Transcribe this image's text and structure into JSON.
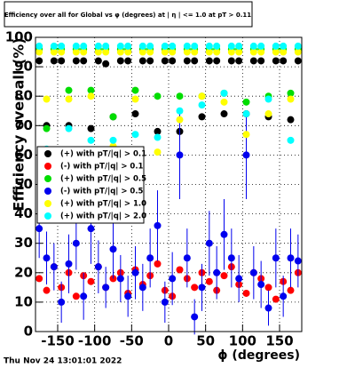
{
  "chart_data": {
    "type": "scatter",
    "title": "Efficiency over all for Global vs φ (degrees) at | η | <= 1.0 at pT > 0.11",
    "x_label": "ϕ (degrees)",
    "y_label": "Efficiency over all (%)",
    "timestamp": "Thu Nov 24 13:01:01 2022",
    "x": [
      -175,
      -165,
      -155,
      -145,
      -135,
      -125,
      -115,
      -105,
      -95,
      -85,
      -75,
      -65,
      -55,
      -45,
      -35,
      -25,
      -15,
      -5,
      5,
      15,
      25,
      35,
      45,
      55,
      65,
      75,
      85,
      95,
      105,
      115,
      125,
      135,
      145,
      155,
      165,
      175
    ],
    "series": [
      {
        "name": "(+) with pT/|q| > 0.1",
        "color": "#000000",
        "values": [
          92,
          70,
          92,
          92,
          70,
          92,
          92,
          69,
          92,
          91,
          73,
          92,
          92,
          74,
          92,
          92,
          68,
          92,
          92,
          68,
          92,
          92,
          73,
          92,
          92,
          74,
          92,
          92,
          74,
          92,
          92,
          73,
          92,
          92,
          72,
          92
        ]
      },
      {
        "name": "(-) with pT/|q| > 0.1",
        "color": "#ff0000",
        "values": [
          18,
          14,
          22,
          15,
          20,
          12,
          19,
          17,
          22,
          15,
          18,
          20,
          13,
          21,
          16,
          19,
          23,
          14,
          12,
          21,
          18,
          15,
          20,
          17,
          14,
          19,
          22,
          16,
          13,
          20,
          18,
          15,
          11,
          17,
          14,
          20
        ]
      },
      {
        "name": "(+) with pT/|q| > 0.5",
        "color": "#00dd00",
        "values": [
          96,
          69,
          96,
          96,
          82,
          96,
          96,
          82,
          96,
          96,
          73,
          96,
          96,
          82,
          96,
          96,
          80,
          96,
          96,
          80,
          96,
          96,
          80,
          96,
          96,
          81,
          96,
          96,
          78,
          96,
          96,
          80,
          96,
          96,
          81,
          96
        ]
      },
      {
        "name": "(-) with pT/|q| > 0.5",
        "color": "#0000ee",
        "values": [
          35,
          25,
          22,
          10,
          23,
          30,
          12,
          35,
          22,
          15,
          28,
          18,
          12,
          20,
          15,
          25,
          36,
          10,
          18,
          60,
          25,
          5,
          15,
          30,
          20,
          33,
          25,
          18,
          60,
          20,
          16,
          8,
          25,
          12,
          25,
          24
        ],
        "errors": [
          10,
          9,
          8,
          7,
          10,
          9,
          8,
          12,
          9,
          7,
          10,
          8,
          7,
          9,
          8,
          10,
          12,
          7,
          9,
          15,
          10,
          6,
          8,
          11,
          9,
          12,
          10,
          8,
          15,
          9,
          8,
          6,
          10,
          7,
          10,
          9
        ]
      },
      {
        "name": "(+) with pT/|q| > 1.0",
        "color": "#ffff00",
        "values": [
          95,
          79,
          95,
          95,
          79,
          95,
          95,
          80,
          95,
          95,
          63,
          95,
          95,
          79,
          95,
          95,
          61,
          95,
          95,
          72,
          95,
          95,
          80,
          95,
          95,
          78,
          95,
          95,
          67,
          95,
          95,
          74,
          95,
          95,
          79,
          95
        ]
      },
      {
        "name": "(+) with pT/|q| > 2.0",
        "color": "#00ffff",
        "values": [
          97,
          62,
          97,
          97,
          69,
          97,
          97,
          65,
          97,
          97,
          65,
          97,
          97,
          67,
          97,
          97,
          66,
          97,
          97,
          75,
          97,
          97,
          77,
          97,
          97,
          81,
          97,
          97,
          74,
          97,
          97,
          79,
          97,
          97,
          65,
          97
        ]
      }
    ],
    "xlim": [
      -180,
      180
    ],
    "ylim": [
      0,
      100
    ],
    "xticks": [
      -150,
      -100,
      -50,
      0,
      50,
      100,
      150
    ],
    "yticks": [
      0,
      10,
      20,
      30,
      40,
      50,
      60,
      70,
      80,
      90,
      100
    ],
    "grid": true,
    "legend": "left"
  }
}
